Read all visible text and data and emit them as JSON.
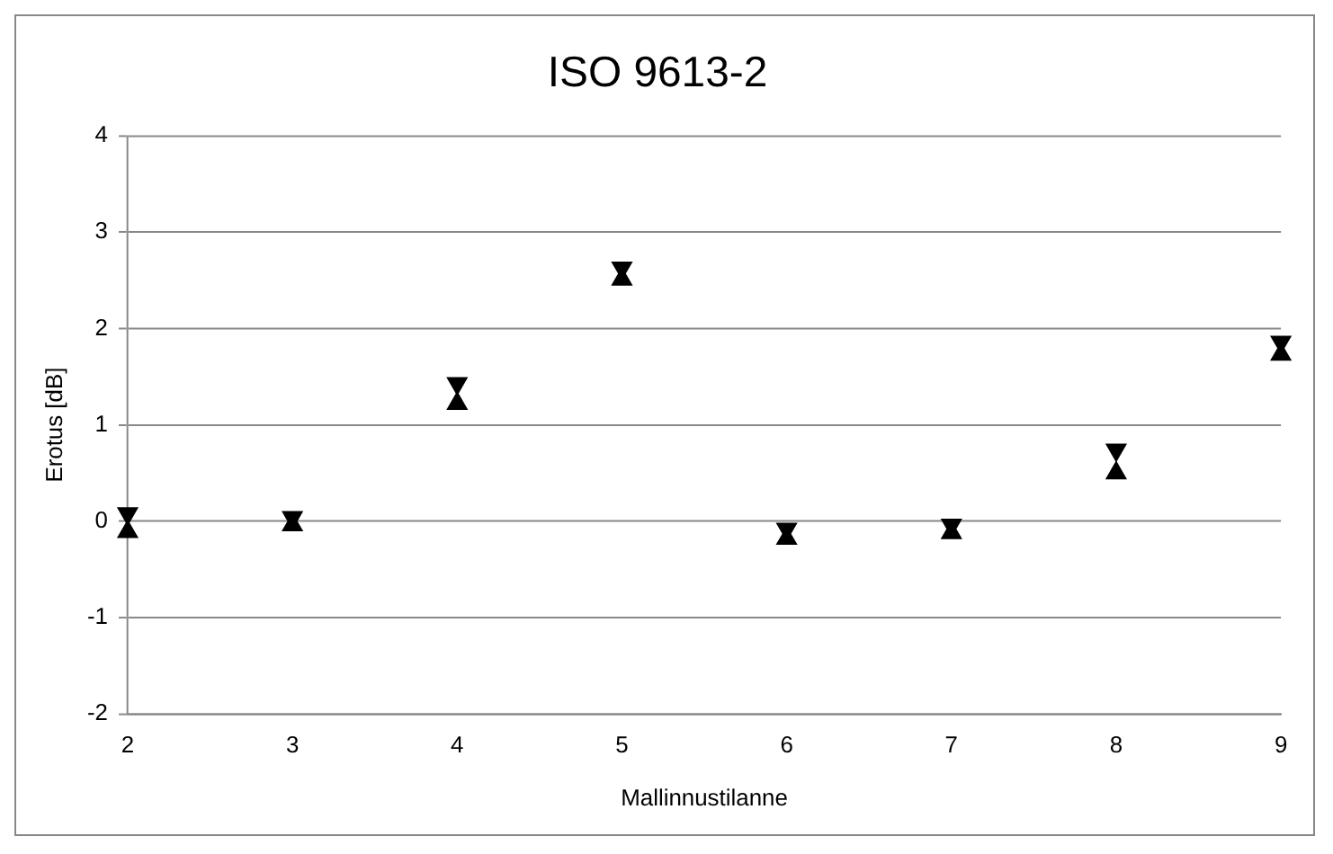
{
  "chart_data": {
    "type": "scatter",
    "title": "ISO 9613-2",
    "xlabel": "Mallinnustilanne",
    "ylabel": "Erotus [dB]",
    "categories": [
      "2",
      "3",
      "4",
      "5",
      "6",
      "7",
      "8",
      "9"
    ],
    "series": [
      {
        "color": "#000000",
        "values": [
          0.08,
          0.04,
          1.43,
          2.63,
          -0.08,
          -0.04,
          0.74,
          1.86
        ]
      },
      {
        "color": "#000000",
        "values": [
          -0.11,
          -0.04,
          1.22,
          2.51,
          -0.18,
          -0.12,
          0.5,
          1.73
        ]
      }
    ],
    "ylim": [
      -2,
      4
    ],
    "yticks": [
      -2,
      -1,
      0,
      1,
      2,
      3,
      4
    ],
    "grid": "y",
    "legend": false,
    "marker": "triangle"
  }
}
